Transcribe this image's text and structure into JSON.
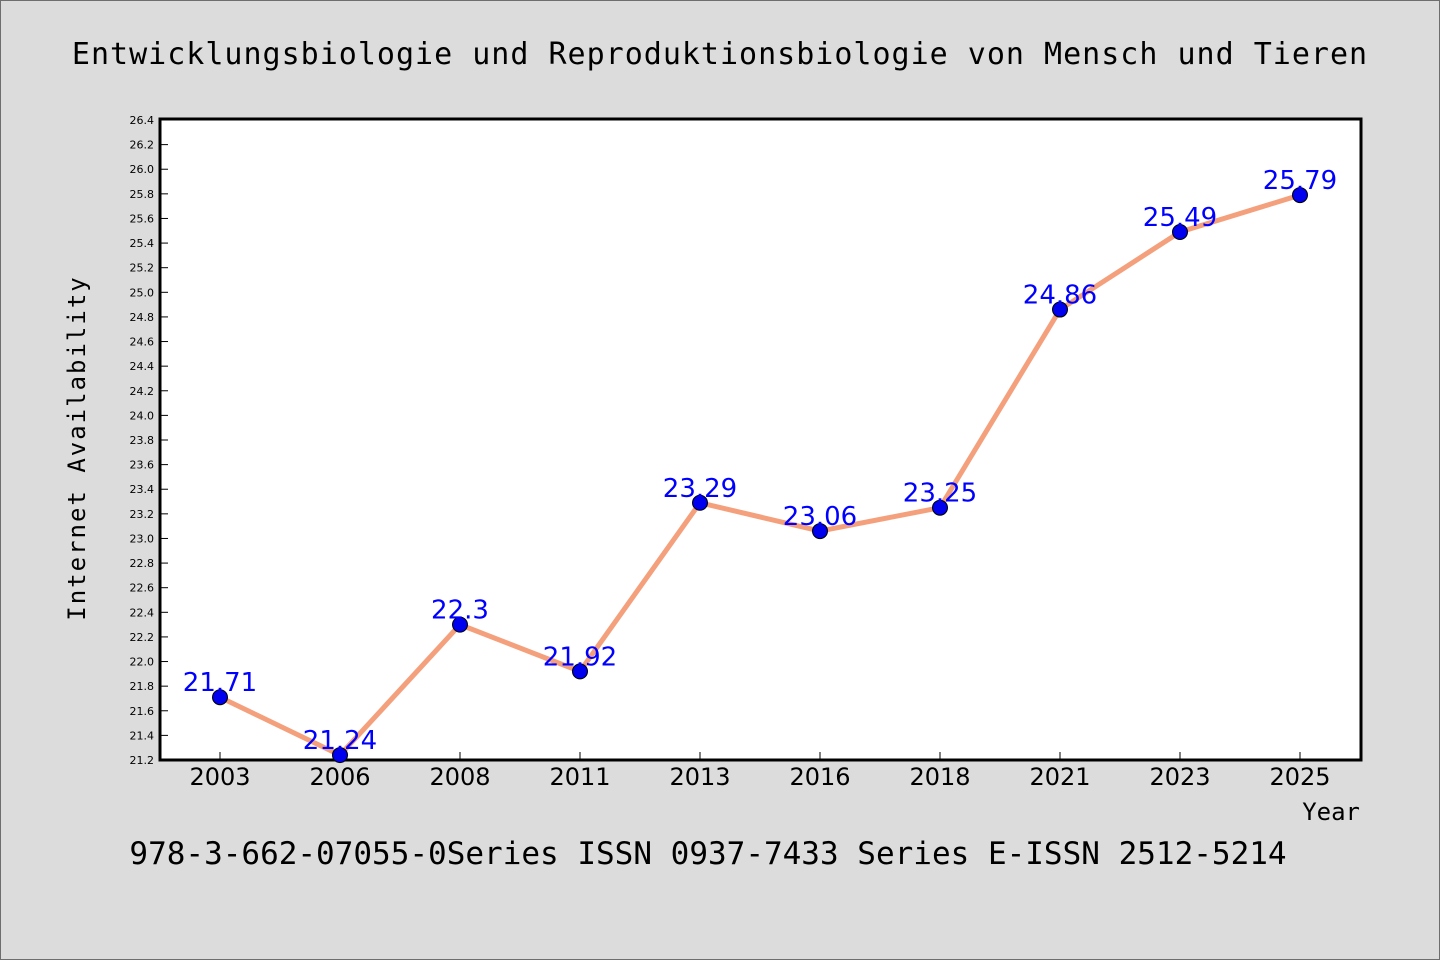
{
  "title": "Entwicklungsbiologie und Reproduktionsbiologie von Mensch und Tieren",
  "footer": "978-3-662-07055-0Series ISSN 0937-7433 Series E-ISSN 2512-5214",
  "colors": {
    "background": "#dcdcdc",
    "plot_background": "#ffffff",
    "line": "#f4a07c",
    "marker": "#0000ee",
    "data_label": "#0000ff"
  },
  "chart_data": {
    "type": "line",
    "title": "Entwicklungsbiologie und Reproduktionsbiologie von Mensch und Tieren",
    "xlabel": "Year",
    "ylabel": "Internet Availability",
    "categories": [
      "2003",
      "2006",
      "2008",
      "2011",
      "2013",
      "2016",
      "2018",
      "2021",
      "2023",
      "2025"
    ],
    "series": [
      {
        "values": [
          21.71,
          21.24,
          22.3,
          21.92,
          23.29,
          23.06,
          23.25,
          24.86,
          25.49,
          25.79
        ],
        "labels": [
          "21.71",
          "21.24",
          "22.3",
          "21.92",
          "23.29",
          "23.06",
          "23.25",
          "24.86",
          "25.49",
          "25.79"
        ]
      }
    ],
    "ylim": [
      21.2,
      26.4
    ],
    "yticks": [
      "21.2",
      "21.4",
      "21.6",
      "21.8",
      "22.0",
      "22.2",
      "22.4",
      "22.6",
      "22.8",
      "23.0",
      "23.2",
      "23.4",
      "23.6",
      "23.8",
      "24.0",
      "24.2",
      "24.4",
      "24.6",
      "24.8",
      "25.0",
      "25.2",
      "25.4",
      "25.6",
      "25.8",
      "26.0",
      "26.2",
      "26.4"
    ],
    "grid": false,
    "legend": "none"
  }
}
